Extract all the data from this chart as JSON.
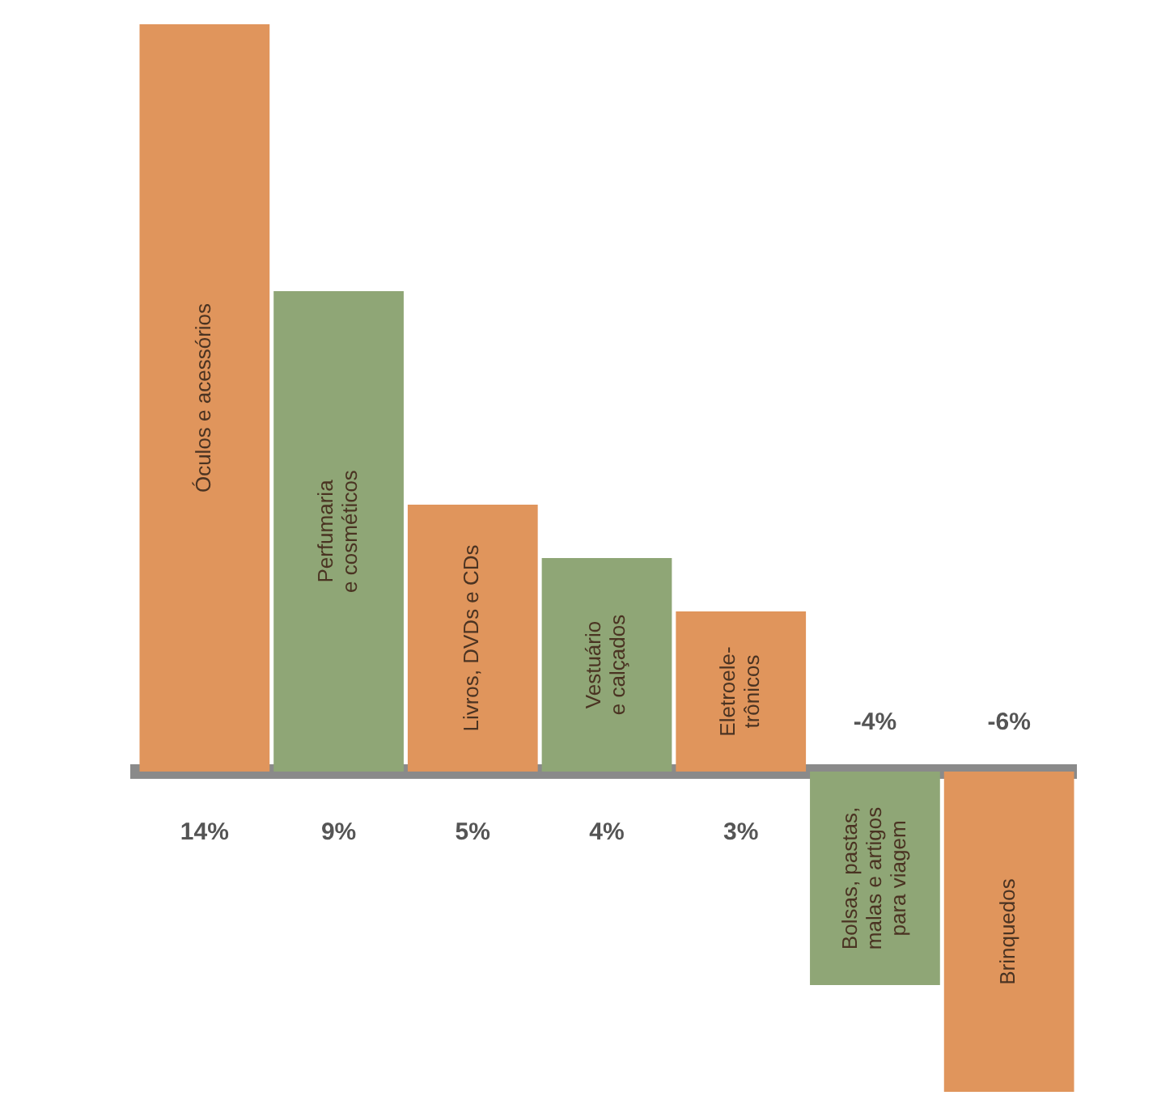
{
  "chart_data": {
    "type": "bar",
    "categories": [
      "Óculos e acessórios",
      "Perfumaria\ne cosméticos",
      "Livros, DVDs e CDs",
      "Vestuário\ne calçados",
      "Eletroele-\ntrônicos",
      "Bolsas, pastas,\nmalas e artigos\npara viagem",
      "Brinquedos"
    ],
    "values": [
      14,
      9,
      5,
      4,
      3,
      -4,
      -6
    ],
    "colors": [
      "#e0955c",
      "#8fa676",
      "#e0955c",
      "#8fa676",
      "#e0955c",
      "#8fa676",
      "#e0955c"
    ],
    "value_labels": [
      "14%",
      "9%",
      "5%",
      "4%",
      "3%",
      "-4%",
      "-6%"
    ],
    "tick_labels": false,
    "grid": false,
    "legend": false
  }
}
